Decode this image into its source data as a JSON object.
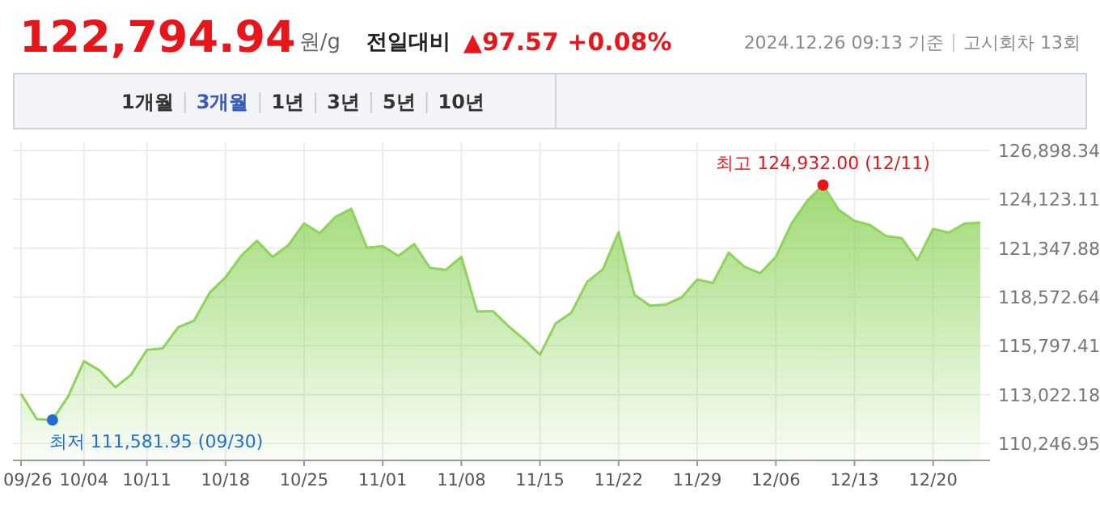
{
  "chart_data": {
    "type": "area",
    "title": "122,794.94",
    "subtitle": "원/g",
    "categories": [
      "09/26",
      null,
      null,
      null,
      "10/04",
      null,
      null,
      null,
      "10/11",
      null,
      null,
      null,
      null,
      "10/18",
      null,
      null,
      null,
      null,
      "10/25",
      null,
      null,
      null,
      null,
      "11/01",
      null,
      null,
      null,
      null,
      "11/08",
      null,
      null,
      null,
      null,
      "11/15",
      null,
      null,
      null,
      null,
      "11/22",
      null,
      null,
      null,
      null,
      "11/29",
      null,
      null,
      null,
      null,
      "12/06",
      null,
      null,
      null,
      null,
      "12/13",
      null,
      null,
      null,
      null,
      "12/20",
      null,
      null,
      null
    ],
    "series": [
      {
        "color": "#8ed35b",
        "values": [
          113070,
          111630,
          111581.95,
          112920,
          114920,
          114390,
          113440,
          114150,
          115560,
          115650,
          116850,
          117220,
          118820,
          119680,
          120910,
          121770,
          120850,
          121520,
          122750,
          122200,
          123120,
          123580,
          121370,
          121460,
          120910,
          121580,
          120230,
          120110,
          120850,
          117740,
          117770,
          116910,
          116150,
          115290,
          117070,
          117680,
          119430,
          120140,
          122260,
          118700,
          118080,
          118140,
          118540,
          119560,
          119370,
          121090,
          120290,
          119920,
          120850,
          122750,
          124040,
          124932.0,
          123520,
          122900,
          122660,
          122040,
          121920,
          120660,
          122440,
          122230,
          122750,
          122794.94
        ]
      }
    ],
    "ylim": [
      109325,
      127360
    ],
    "yticks": [
      {
        "value": 110246.95,
        "label": "110,246.95"
      },
      {
        "value": 113022.18,
        "label": "113,022.18"
      },
      {
        "value": 115797.41,
        "label": "115,797.41"
      },
      {
        "value": 118572.64,
        "label": "118,572.64"
      },
      {
        "value": 121347.88,
        "label": "121,347.88"
      },
      {
        "value": 124123.11,
        "label": "124,123.11"
      },
      {
        "value": 126898.34,
        "label": "126,898.34"
      }
    ],
    "grid": true,
    "annotations": [
      "전일대비",
      "▲97.57 +0.08%",
      "2024.12.26 09:13 기준",
      "고시회차 13회",
      "1개월",
      "3개월",
      "1년",
      "3년",
      "5년",
      "10년",
      "최저 111,581.95 (09/30)",
      "최고 124,932.00 (12/11)"
    ]
  }
}
